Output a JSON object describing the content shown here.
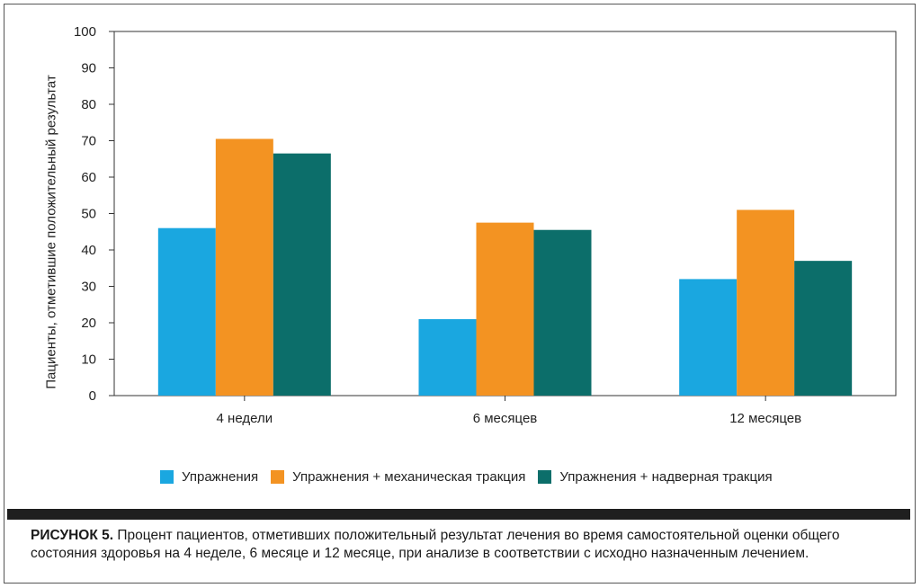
{
  "chart_data": {
    "type": "bar",
    "categories": [
      "4 недели",
      "6 месяцев",
      "12 месяцев"
    ],
    "series": [
      {
        "name": "Упражнения",
        "values": [
          46,
          21,
          32
        ],
        "color": "#1aa7e0"
      },
      {
        "name": "Упражнения + механическая тракция",
        "values": [
          70.5,
          47.5,
          51
        ],
        "color": "#f39322"
      },
      {
        "name": "Упражнения + надверная тракция",
        "values": [
          66.5,
          45.5,
          37
        ],
        "color": "#0c6e6a"
      }
    ],
    "title": "",
    "xlabel": "",
    "ylabel": "Пациенты, отметившие положительный результат",
    "ylim": [
      0,
      100
    ],
    "yticks": [
      "0",
      "10",
      "20",
      "30",
      "40",
      "50",
      "60",
      "70",
      "80",
      "90",
      "100"
    ],
    "grid": false,
    "legend_position": "bottom"
  },
  "caption": {
    "label": "РИСУНОК 5.",
    "text": "Процент пациентов, отметивших положительный результат лечения во время самостоятельной оценки общего состояния здоровья на 4 неделе, 6 месяце и 12 месяце, при анализе в соответствии с исходно назначенным лечением."
  }
}
